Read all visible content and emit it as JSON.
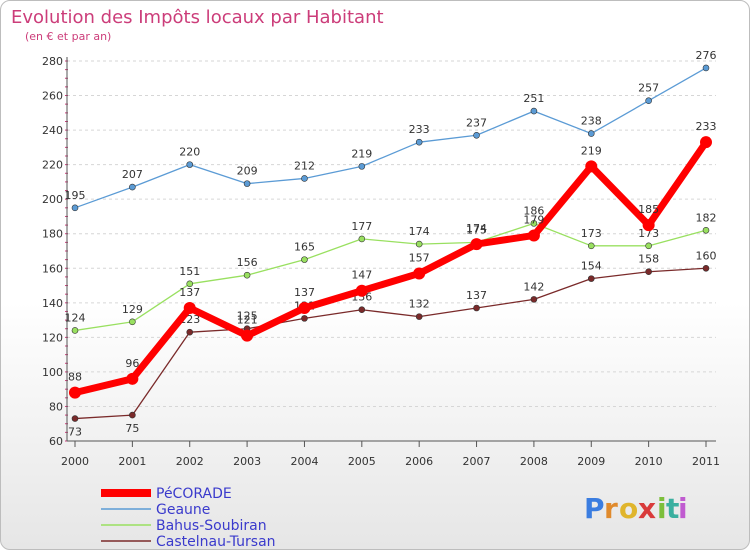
{
  "chart_data": {
    "type": "line",
    "title": "Evolution des Impôts locaux par Habitant",
    "subtitle": "(en € et par an)",
    "xlabel": "",
    "ylabel": "",
    "ylim": [
      60,
      280
    ],
    "yticks": [
      60,
      80,
      100,
      120,
      140,
      160,
      180,
      200,
      220,
      240,
      260,
      280
    ],
    "grid": "horizontal",
    "x": [
      "2000",
      "2001",
      "2002",
      "2003",
      "2004",
      "2005",
      "2006",
      "2007",
      "2008",
      "2009",
      "2010",
      "2011"
    ],
    "series": [
      {
        "name": "Geaune",
        "color": "#5b9bd5",
        "values": [
          195,
          207,
          220,
          209,
          212,
          219,
          233,
          237,
          251,
          238,
          257,
          276
        ]
      },
      {
        "name": "Bahus-Soubiran",
        "color": "#99e060",
        "values": [
          124,
          129,
          151,
          156,
          165,
          177,
          174,
          175,
          186,
          173,
          173,
          182
        ]
      },
      {
        "name": "Castelnau-Tursan",
        "color": "#7a2a2a",
        "values": [
          73,
          75,
          123,
          125,
          131,
          136,
          132,
          137,
          142,
          154,
          158,
          160
        ]
      },
      {
        "name": "PéCORADE",
        "color": "#ff0000",
        "values": [
          88,
          96,
          137,
          121,
          137,
          147,
          157,
          174,
          179,
          219,
          185,
          233
        ]
      }
    ],
    "legend_order": [
      "PéCORADE",
      "Geaune",
      "Bahus-Soubiran",
      "Castelnau-Tursan"
    ],
    "legend_position": "bottom-left"
  },
  "logo": {
    "letters": [
      "P",
      "r",
      "o",
      "x",
      "i",
      "t",
      "i"
    ],
    "colors": [
      "#3b7de0",
      "#e08a2c",
      "#e0b52c",
      "#d93b3b",
      "#7cbf3b",
      "#3bb0a0",
      "#c05bd0"
    ]
  }
}
